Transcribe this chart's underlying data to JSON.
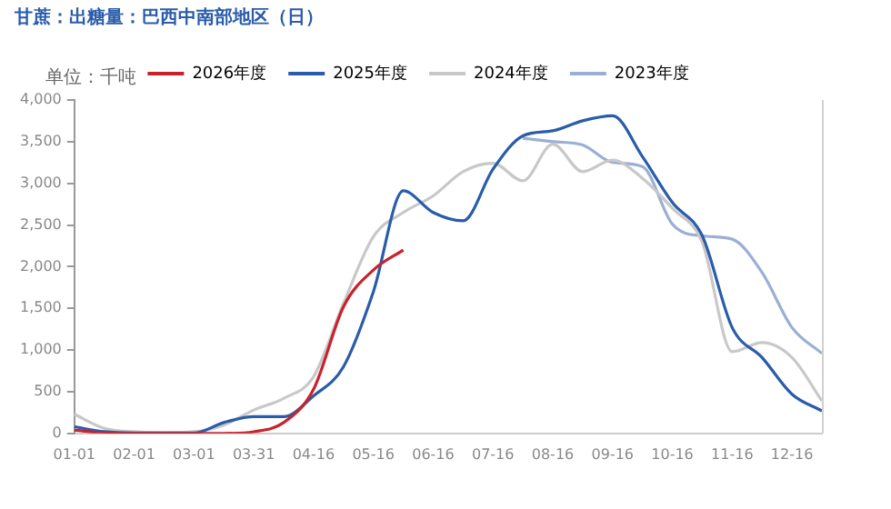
{
  "chart_data": {
    "type": "line",
    "title": "甘蔗：出糖量：巴西中南部地区（日）",
    "ylabel": "单位：千吨",
    "categories": [
      "01-01",
      null,
      "02-01",
      null,
      "03-01",
      null,
      "03-31",
      null,
      "04-16",
      null,
      "05-16",
      null,
      "06-16",
      null,
      "07-16",
      null,
      "08-16",
      null,
      "09-16",
      null,
      "10-16",
      null,
      "11-16",
      null,
      "12-16",
      null
    ],
    "series": [
      {
        "name": "2026年度",
        "color": "#c8232c",
        "values": [
          40,
          5,
          0,
          0,
          0,
          0,
          20,
          130,
          530,
          1520,
          1960,
          2200,
          null,
          null,
          null,
          null,
          null,
          null,
          null,
          null,
          null,
          null,
          null,
          null,
          null,
          null
        ]
      },
      {
        "name": "2025年度",
        "color": "#2a5caa",
        "values": [
          80,
          20,
          5,
          5,
          5,
          130,
          200,
          200,
          450,
          800,
          1700,
          2910,
          2650,
          2550,
          3170,
          3570,
          3630,
          3750,
          3810,
          3320,
          2770,
          2370,
          1270,
          910,
          470,
          270
        ]
      },
      {
        "name": "2024年度",
        "color": "#c8c8c8",
        "values": [
          230,
          60,
          20,
          10,
          20,
          100,
          280,
          420,
          680,
          1560,
          2360,
          2650,
          2850,
          3140,
          3240,
          3030,
          3470,
          3140,
          3280,
          3060,
          2700,
          2290,
          980,
          1090,
          910,
          390
        ]
      },
      {
        "name": "2023年度",
        "color": "#9aafd6",
        "values": [
          null,
          null,
          null,
          null,
          null,
          null,
          null,
          null,
          null,
          null,
          null,
          null,
          null,
          null,
          null,
          3540,
          3500,
          3460,
          3250,
          3200,
          2510,
          2370,
          2330,
          1930,
          1270,
          960
        ]
      }
    ],
    "ylim": [
      0,
      4000
    ],
    "yticks": [
      0,
      {
        "value": 500,
        "label": "500"
      },
      {
        "value": 1000,
        "label": "1,000"
      },
      {
        "value": 1500,
        "label": "1,500"
      },
      {
        "value": 2000,
        "label": "2,000"
      },
      {
        "value": 2500,
        "label": "2,500"
      },
      {
        "value": 3000,
        "label": "3,000"
      },
      {
        "value": 3500,
        "label": "3,500"
      },
      {
        "value": 4000,
        "label": "4,000"
      }
    ],
    "grid": false,
    "legend": "top",
    "marker": "none",
    "line_style": "solid"
  }
}
